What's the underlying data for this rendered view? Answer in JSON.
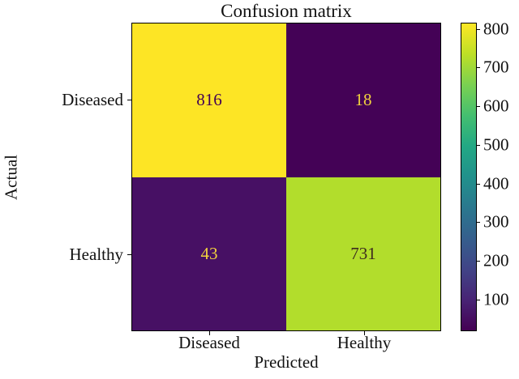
{
  "chart_data": {
    "type": "heatmap",
    "title": "Confusion matrix",
    "xlabel": "Predicted",
    "ylabel": "Actual",
    "x_categories": [
      "Diseased",
      "Healthy"
    ],
    "y_categories": [
      "Diseased",
      "Healthy"
    ],
    "matrix": [
      [
        816,
        18
      ],
      [
        43,
        731
      ]
    ],
    "colormap": "viridis",
    "vmin": 18,
    "vmax": 816,
    "colorbar_ticks": [
      800,
      700,
      600,
      500,
      400,
      300,
      200,
      100
    ],
    "legend_position": "right-colorbar",
    "grid": false
  },
  "cells": [
    {
      "value": "816",
      "bg": "#fde525",
      "fg": "#440154"
    },
    {
      "value": "18",
      "bg": "#440256",
      "fg": "#f2d23e"
    },
    {
      "value": "43",
      "bg": "#471064",
      "fg": "#f2d23e"
    },
    {
      "value": "731",
      "bg": "#b2dd2c",
      "fg": "#3d2b1f"
    }
  ],
  "axis": {
    "x_ticks": [
      "Diseased",
      "Healthy"
    ],
    "y_ticks": [
      "Diseased",
      "Healthy"
    ]
  },
  "colorbar": {
    "ticks": [
      "800",
      "700",
      "600",
      "500",
      "400",
      "300",
      "200",
      "100"
    ]
  },
  "colors": {
    "background": "#ffffff",
    "spine": "#000000",
    "text": "#111111",
    "viridis_min": "#440154",
    "viridis_max": "#fde725"
  }
}
